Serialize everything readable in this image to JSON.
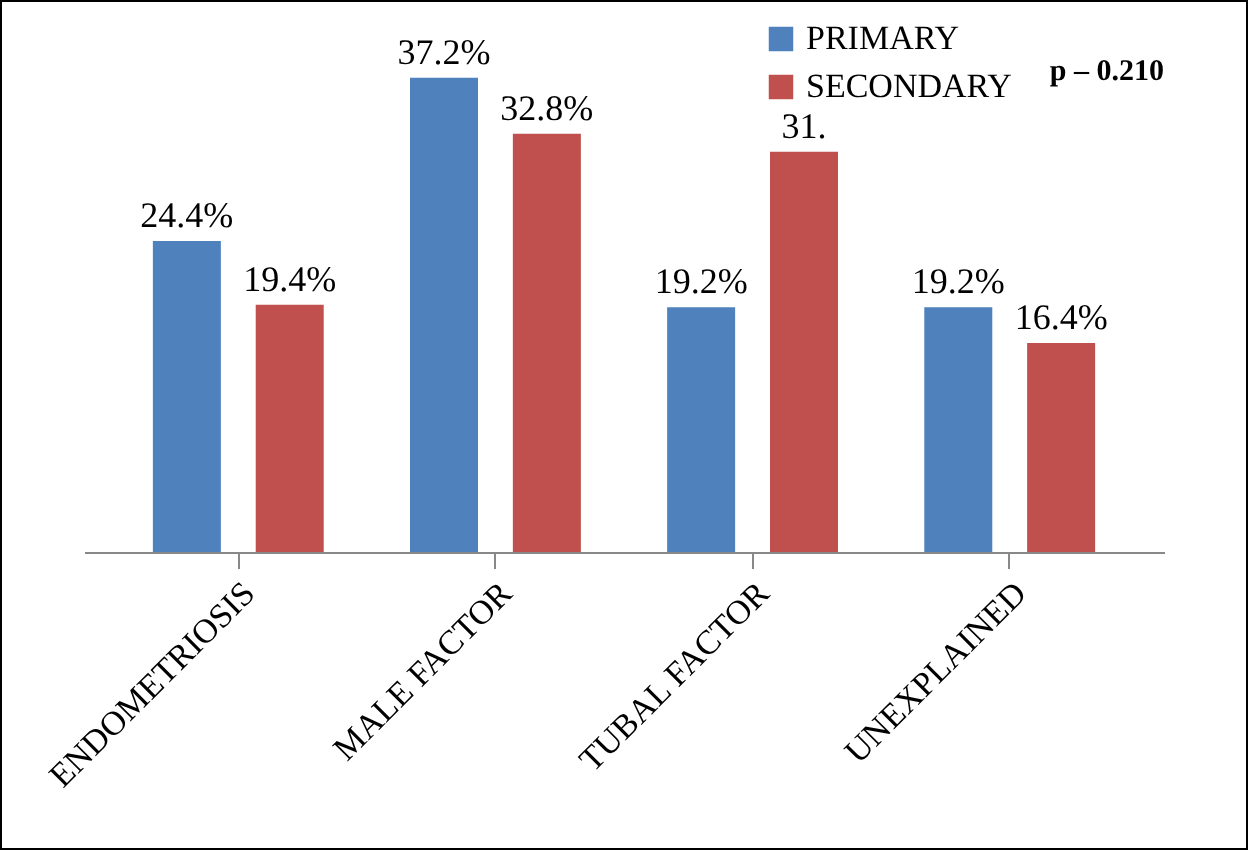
{
  "chart_data": {
    "type": "bar",
    "categories": [
      "ENDOMETRIOSIS",
      "MALE FACTOR",
      "TUBAL FACTOR",
      "UNEXPLAINED"
    ],
    "series": [
      {
        "name": "PRIMARY",
        "color": "#4f81bd",
        "values": [
          24.4,
          37.2,
          19.2,
          19.2
        ],
        "value_labels": [
          "24.4%",
          "37.2%",
          "19.2%",
          "19.2%"
        ]
      },
      {
        "name": "SECONDARY",
        "color": "#c0504d",
        "values": [
          19.4,
          32.8,
          31.4,
          16.4
        ],
        "value_labels": [
          "19.4%",
          "32.8%",
          "31.",
          "16.4%"
        ]
      }
    ],
    "annotations": [
      "p – 0.210"
    ],
    "legend": "top right",
    "tick_labels": "x"
  }
}
